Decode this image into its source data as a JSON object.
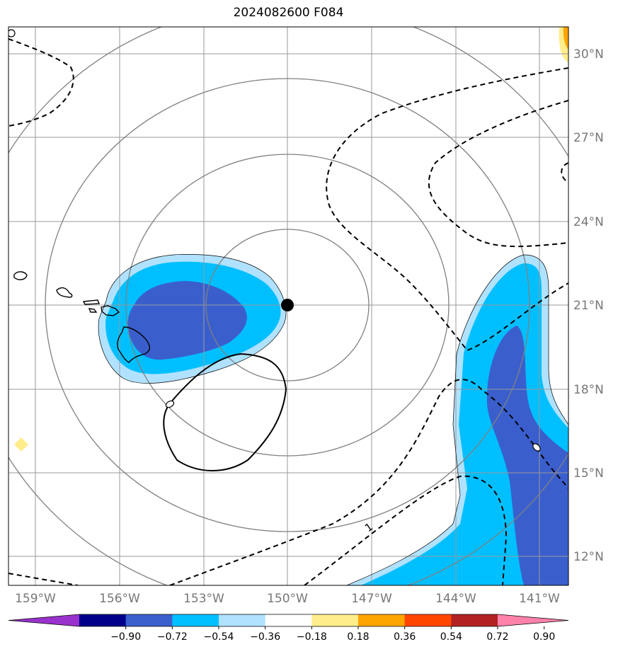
{
  "title": "2024082600 F084",
  "map": {
    "lon_range": [
      -160,
      -139
    ],
    "lat_range": [
      11,
      31
    ],
    "lon_ticks": [
      "159°W",
      "156°W",
      "153°W",
      "150°W",
      "147°W",
      "144°W",
      "141°W"
    ],
    "lat_ticks": [
      "12°N",
      "15°N",
      "18°N",
      "21°N",
      "24°N",
      "27°N",
      "30°N"
    ],
    "center_marker": {
      "lon": -150,
      "lat": 21
    },
    "range_rings": 4,
    "contour_label": "1",
    "contour_label_neg": "0"
  },
  "colorbar": {
    "colors": [
      "#9932cc",
      "#00008b",
      "#3a5fcd",
      "#00bfff",
      "#b0e2ff",
      "#ffffff",
      "#ffec8b",
      "#ffa500",
      "#ff4500",
      "#b22222",
      "#ff82ab"
    ],
    "labels": [
      "−0.90",
      "−0.72",
      "−0.54",
      "−0.36",
      "−0.18",
      "0.18",
      "0.36",
      "0.54",
      "0.72",
      "0.90"
    ]
  }
}
